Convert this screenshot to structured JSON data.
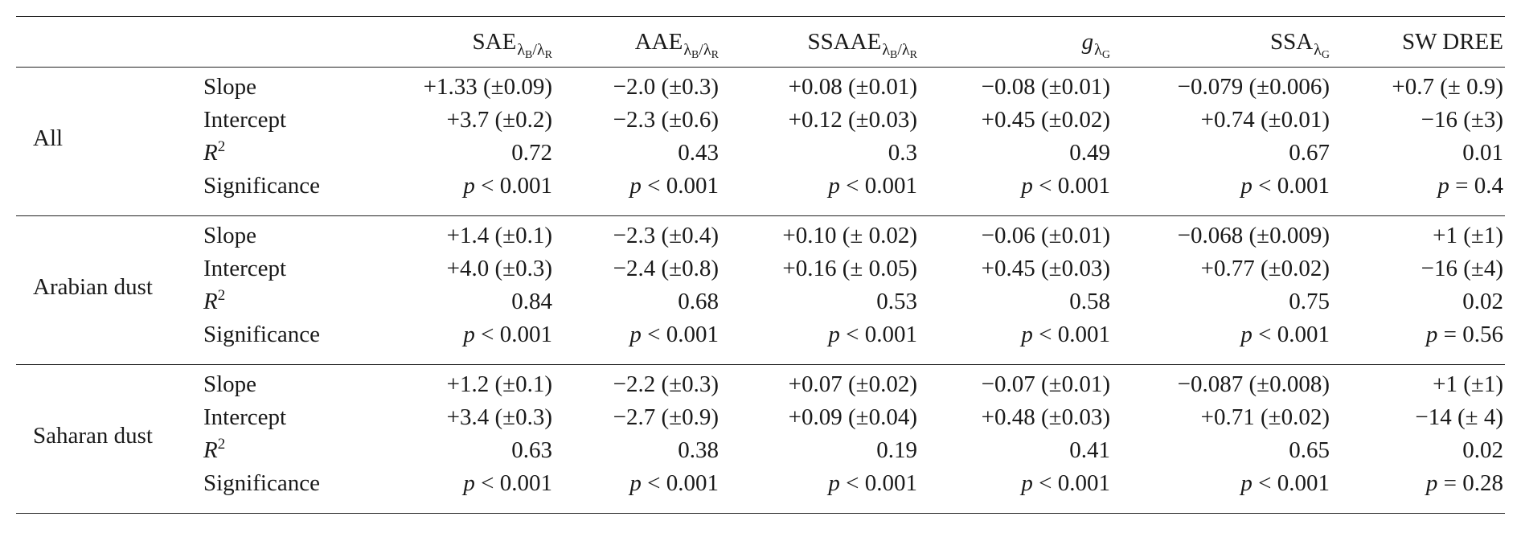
{
  "header": {
    "cols": [
      {
        "main": "SAE",
        "sub": "λ_B/λ_R"
      },
      {
        "main": "AAE",
        "sub": "λ_B/λ_R"
      },
      {
        "main": "SSAAE",
        "sub": "λ_B/λ_R"
      },
      {
        "main": "g",
        "sub": "λ_G"
      },
      {
        "main": "SSA",
        "sub": "λ_G"
      },
      {
        "main": "SW DREE",
        "sub": ""
      }
    ]
  },
  "stat_labels": {
    "slope": "Slope",
    "intercept": "Intercept",
    "r2": "R",
    "r2_exp": "2",
    "significance": "Significance"
  },
  "groups": [
    {
      "label": "All",
      "slope": [
        "+1.33 (±0.09)",
        "−2.0 (±0.3)",
        "+0.08 (±0.01)",
        "−0.08 (±0.01)",
        "−0.079 (±0.006)",
        "+0.7 (± 0.9)"
      ],
      "intercept": [
        "+3.7 (±0.2)",
        "−2.3 (±0.6)",
        "+0.12 (±0.03)",
        "+0.45 (±0.02)",
        "+0.74 (±0.01)",
        "−16 (±3)"
      ],
      "r2": [
        "0.72",
        "0.43",
        "0.3",
        "0.49",
        "0.67",
        "0.01"
      ],
      "significance": [
        "< 0.001",
        "< 0.001",
        "< 0.001",
        "< 0.001",
        "< 0.001",
        "= 0.4"
      ]
    },
    {
      "label": "Arabian dust",
      "slope": [
        "+1.4 (±0.1)",
        "−2.3 (±0.4)",
        "+0.10 (± 0.02)",
        "−0.06 (±0.01)",
        "−0.068 (±0.009)",
        "+1 (±1)"
      ],
      "intercept": [
        "+4.0 (±0.3)",
        "−2.4 (±0.8)",
        "+0.16 (± 0.05)",
        "+0.45 (±0.03)",
        "+0.77 (±0.02)",
        "−16 (±4)"
      ],
      "r2": [
        "0.84",
        "0.68",
        "0.53",
        "0.58",
        "0.75",
        "0.02"
      ],
      "significance": [
        "< 0.001",
        "< 0.001",
        "< 0.001",
        "< 0.001",
        "< 0.001",
        "= 0.56"
      ]
    },
    {
      "label": "Saharan dust",
      "slope": [
        "+1.2 (±0.1)",
        "−2.2 (±0.3)",
        "+0.07 (±0.02)",
        "−0.07 (±0.01)",
        "−0.087 (±0.008)",
        "+1 (±1)"
      ],
      "intercept": [
        "+3.4 (±0.3)",
        "−2.7 (±0.9)",
        "+0.09 (±0.04)",
        "+0.48 (±0.03)",
        "+0.71 (±0.02)",
        "−14 (± 4)"
      ],
      "r2": [
        "0.63",
        "0.38",
        "0.19",
        "0.41",
        "0.65",
        "0.02"
      ],
      "significance": [
        "< 0.001",
        "< 0.001",
        "< 0.001",
        "< 0.001",
        "< 0.001",
        "= 0.28"
      ]
    }
  ],
  "p_symbol": "p"
}
